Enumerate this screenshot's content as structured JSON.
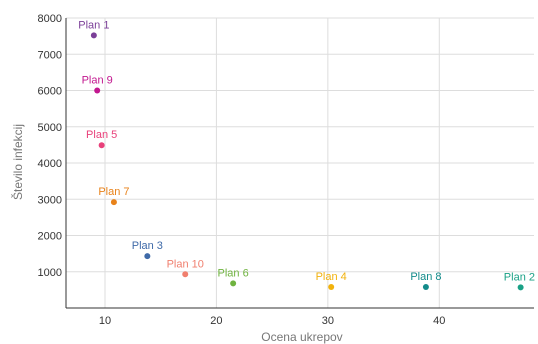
{
  "chart_data": {
    "type": "scatter",
    "xlabel": "Ocena ukrepov",
    "ylabel": "Število infekcij",
    "xlim": [
      6.5,
      48.5
    ],
    "ylim": [
      0,
      8000
    ],
    "x_ticks": [
      10,
      20,
      30,
      40
    ],
    "y_ticks": [
      1000,
      2000,
      3000,
      4000,
      5000,
      6000,
      7000,
      8000
    ],
    "grid": true,
    "points": [
      {
        "label": "Plan 1",
        "x": 9.0,
        "y": 7520,
        "color": "#7b3f98"
      },
      {
        "label": "Plan 9",
        "x": 9.3,
        "y": 6000,
        "color": "#c2188f"
      },
      {
        "label": "Plan 5",
        "x": 9.7,
        "y": 4490,
        "color": "#e8407a"
      },
      {
        "label": "Plan 7",
        "x": 10.8,
        "y": 2920,
        "color": "#e8821a"
      },
      {
        "label": "Plan 3",
        "x": 13.8,
        "y": 1430,
        "color": "#3f6aa8"
      },
      {
        "label": "Plan 10",
        "x": 17.2,
        "y": 930,
        "color": "#f07f6e"
      },
      {
        "label": "Plan 6",
        "x": 21.5,
        "y": 680,
        "color": "#6fb33f"
      },
      {
        "label": "Plan 4",
        "x": 30.3,
        "y": 580,
        "color": "#f2b20c"
      },
      {
        "label": "Plan 8",
        "x": 38.8,
        "y": 580,
        "color": "#138b8a"
      },
      {
        "label": "Plan 2",
        "x": 47.3,
        "y": 570,
        "color": "#1aa186"
      }
    ]
  }
}
